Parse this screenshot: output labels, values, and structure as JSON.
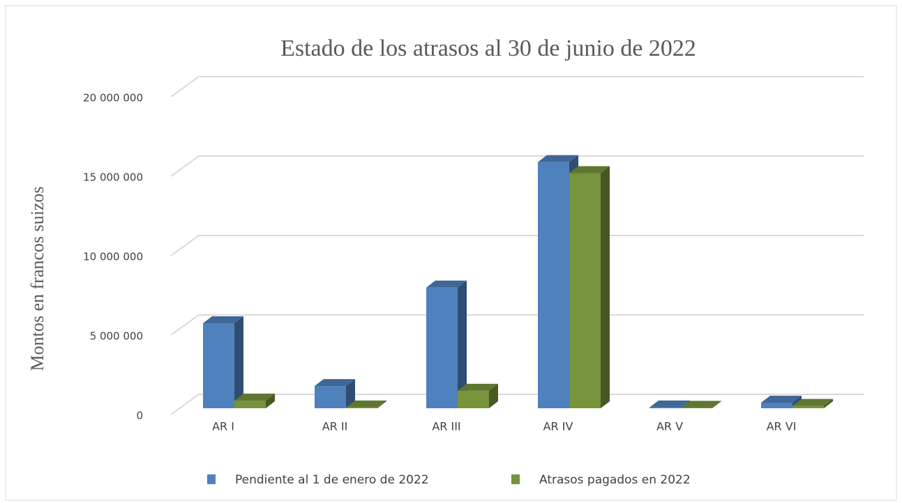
{
  "chart_data": {
    "type": "bar3d",
    "title": "Estado de los atrasos al 30 de junio de 2022",
    "ylabel": "Montos en francos suizos",
    "categories": [
      "AR I",
      "AR II",
      "AR III",
      "AR IV",
      "AR V",
      "AR VI"
    ],
    "series": [
      {
        "name": "Pendiente al 1 de enero de 2022",
        "color": "#4f81bd",
        "values": [
          5350000,
          1400000,
          7600000,
          15500000,
          50000,
          350000
        ]
      },
      {
        "name": "Atrasos pagados en 2022",
        "color": "#77933c",
        "values": [
          480000,
          50000,
          1100000,
          14800000,
          30000,
          150000
        ]
      }
    ],
    "ylim": [
      0,
      20000000
    ],
    "yticks": [
      0,
      {
        "value": 5000000,
        "label": "5 000 000"
      },
      {
        "value": 10000000,
        "label": "10 000 000"
      },
      {
        "value": 15000000,
        "label": "15 000 000"
      },
      {
        "value": 20000000,
        "label": "20 000 000"
      }
    ],
    "grid": true,
    "legend": "bottom"
  }
}
